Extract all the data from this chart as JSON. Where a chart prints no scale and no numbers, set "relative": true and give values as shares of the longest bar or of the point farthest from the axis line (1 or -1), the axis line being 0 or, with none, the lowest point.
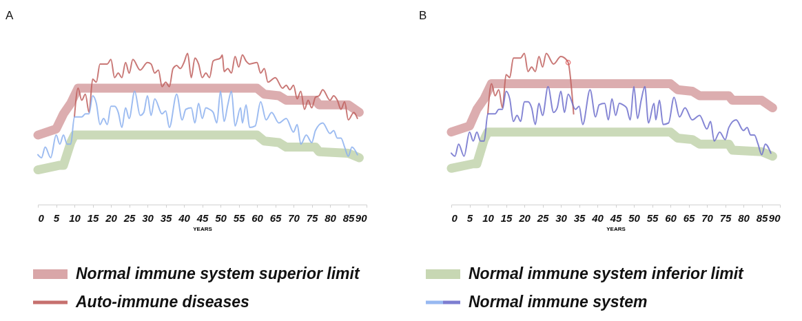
{
  "chart_data": [
    {
      "type": "line",
      "title": "A",
      "xlabel": "YEARS",
      "relative": true,
      "xlim": [
        0,
        90
      ],
      "xticks": [
        0,
        5,
        10,
        15,
        20,
        25,
        30,
        35,
        40,
        45,
        50,
        55,
        60,
        65,
        70,
        75,
        80,
        85,
        90
      ],
      "legend": "bottom",
      "series": [
        {
          "name": "Normal immune system superior limit",
          "color": "#c4777a",
          "x": [
            0,
            5,
            7,
            9,
            11,
            60,
            62,
            66,
            68,
            76,
            77,
            85,
            88
          ],
          "values": [
            0.46,
            0.5,
            0.6,
            0.67,
            0.77,
            0.77,
            0.73,
            0.72,
            0.69,
            0.69,
            0.66,
            0.66,
            0.61
          ]
        },
        {
          "name": "Normal immune system inferior limit",
          "color": "#a9c28a",
          "x": [
            0,
            6,
            7,
            9,
            10,
            60,
            62,
            66,
            68,
            76,
            77,
            85,
            88
          ],
          "values": [
            0.23,
            0.26,
            0.26,
            0.41,
            0.46,
            0.46,
            0.42,
            0.41,
            0.38,
            0.38,
            0.35,
            0.34,
            0.31
          ]
        },
        {
          "name": "Auto-immune diseases",
          "color": "#c0605e",
          "x": [
            10,
            11,
            12,
            13,
            14,
            15,
            16,
            17,
            19,
            20,
            21,
            22,
            23,
            24,
            25,
            26,
            28,
            30,
            31,
            32,
            33,
            34,
            35,
            36,
            37,
            38,
            39,
            40,
            41,
            42,
            43,
            44,
            45,
            46,
            47,
            48,
            50,
            50.5,
            51,
            52,
            53,
            54,
            55,
            56,
            57,
            58,
            60,
            61,
            62,
            63,
            65,
            67,
            68,
            69,
            70,
            71,
            72,
            73,
            74,
            75,
            76,
            77,
            78,
            80,
            81,
            82,
            83,
            84,
            85,
            86.5,
            87.5
          ],
          "values": [
            0.58,
            0.77,
            0.69,
            0.73,
            0.61,
            0.83,
            0.81,
            0.93,
            0.93,
            0.96,
            0.84,
            0.87,
            0.84,
            0.94,
            0.87,
            0.96,
            0.89,
            0.94,
            0.93,
            0.87,
            0.89,
            0.78,
            0.81,
            0.78,
            0.9,
            0.92,
            0.9,
            0.94,
            1,
            0.84,
            0.97,
            0.93,
            0.84,
            0.87,
            0.84,
            0.95,
            0.97,
            0.99,
            0.88,
            0.9,
            0.87,
            0.98,
            0.91,
            0.99,
            0.95,
            0.93,
            0.94,
            0.87,
            0.9,
            0.81,
            0.84,
            0.77,
            0.79,
            0.76,
            0.79,
            0.7,
            0.75,
            0.63,
            0.69,
            0.64,
            0.71,
            0.72,
            0.76,
            0.69,
            0.72,
            0.69,
            0.63,
            0.68,
            0.56,
            0.61,
            0.57
          ]
        },
        {
          "name": "Normal immune system",
          "color": "#8cb0ef",
          "x": [
            0,
            1,
            2,
            3.5,
            5,
            6,
            7,
            8,
            9,
            10,
            12,
            13,
            14,
            15,
            16,
            17,
            18,
            19,
            20,
            21,
            22,
            23,
            24,
            25,
            26.5,
            28,
            29,
            30,
            31,
            32,
            34,
            35,
            36,
            38,
            39.5,
            40.5,
            42,
            43,
            44,
            45,
            46,
            47,
            48,
            49,
            50,
            51,
            52,
            53,
            54,
            55.5,
            56,
            57,
            58,
            59.5,
            61,
            62.5,
            64,
            66,
            68,
            70,
            71,
            72,
            73.5,
            75,
            76,
            78,
            80,
            81,
            82,
            83,
            84,
            85,
            86,
            87.5
          ],
          "values": [
            0.33,
            0.31,
            0.38,
            0.31,
            0.46,
            0.4,
            0.46,
            0.4,
            0.4,
            0.58,
            0.58,
            0.6,
            0.6,
            0.72,
            0.67,
            0.53,
            0.57,
            0.53,
            0.65,
            0.65,
            0.61,
            0.51,
            0.64,
            0.57,
            0.75,
            0.59,
            0.61,
            0.72,
            0.59,
            0.7,
            0.6,
            0.62,
            0.51,
            0.73,
            0.56,
            0.63,
            0.64,
            0.54,
            0.67,
            0.57,
            0.64,
            0.63,
            0.61,
            0.54,
            0.75,
            0.55,
            0.66,
            0.75,
            0.52,
            0.64,
            0.54,
            0.66,
            0.51,
            0.52,
            0.68,
            0.56,
            0.61,
            0.54,
            0.57,
            0.48,
            0.53,
            0.4,
            0.46,
            0.41,
            0.49,
            0.54,
            0.47,
            0.49,
            0.44,
            0.44,
            0.38,
            0.32,
            0.38,
            0.33
          ]
        }
      ]
    },
    {
      "type": "line",
      "title": "B",
      "xlabel": "YEARS",
      "relative": true,
      "xlim": [
        0,
        90
      ],
      "xticks": [
        0,
        5,
        10,
        15,
        20,
        25,
        30,
        35,
        40,
        45,
        50,
        55,
        60,
        65,
        70,
        75,
        80,
        85,
        90
      ],
      "legend": "bottom",
      "series": [
        {
          "name": "Normal immune system superior limit",
          "color": "#c4777a",
          "x": [
            0,
            5,
            7,
            9,
            11,
            60,
            62,
            66,
            68,
            76,
            77,
            85,
            88
          ],
          "values": [
            0.48,
            0.52,
            0.63,
            0.7,
            0.8,
            0.8,
            0.76,
            0.75,
            0.72,
            0.72,
            0.69,
            0.69,
            0.64
          ]
        },
        {
          "name": "Normal immune system inferior limit",
          "color": "#a9c28a",
          "x": [
            0,
            6,
            7,
            9,
            10,
            60,
            62,
            66,
            68,
            76,
            77,
            85,
            88
          ],
          "values": [
            0.24,
            0.27,
            0.27,
            0.43,
            0.48,
            0.48,
            0.44,
            0.43,
            0.4,
            0.4,
            0.36,
            0.35,
            0.32
          ]
        },
        {
          "name": "Auto-immune diseases",
          "color": "#c0605e",
          "x": [
            10,
            11,
            12,
            13,
            14,
            15,
            16,
            17,
            19,
            20,
            21,
            22,
            23,
            24,
            25,
            26,
            28,
            30,
            31,
            32,
            33.5
          ],
          "values": [
            0.6,
            0.8,
            0.72,
            0.76,
            0.64,
            0.86,
            0.84,
            0.97,
            0.97,
            1,
            0.88,
            0.91,
            0.88,
            0.98,
            0.91,
            1,
            0.93,
            0.98,
            0.97,
            0.94,
            0.6
          ]
        },
        {
          "name": "Normal immune system",
          "color": "#6f70cc",
          "x": [
            0,
            1,
            2,
            3.5,
            5,
            6,
            7,
            8,
            9,
            10,
            12,
            13,
            14,
            15,
            16,
            17,
            18,
            19,
            20,
            21,
            22,
            23,
            24,
            25,
            26.5,
            28,
            29,
            30,
            31,
            32,
            34,
            35,
            36,
            38,
            39.5,
            40.5,
            42,
            43,
            44,
            45,
            46,
            47,
            48,
            49,
            50,
            51,
            52,
            53,
            54,
            55.5,
            56,
            57,
            58,
            59.5,
            61,
            62.5,
            64,
            66,
            68,
            70,
            71,
            72,
            73.5,
            75,
            76,
            78,
            80,
            81,
            82,
            83,
            84,
            85,
            86,
            87.5
          ],
          "values": [
            0.34,
            0.32,
            0.4,
            0.32,
            0.48,
            0.42,
            0.48,
            0.42,
            0.42,
            0.6,
            0.6,
            0.63,
            0.63,
            0.75,
            0.7,
            0.55,
            0.59,
            0.55,
            0.68,
            0.68,
            0.64,
            0.53,
            0.67,
            0.59,
            0.78,
            0.61,
            0.64,
            0.75,
            0.61,
            0.73,
            0.63,
            0.65,
            0.53,
            0.76,
            0.58,
            0.66,
            0.67,
            0.56,
            0.7,
            0.59,
            0.67,
            0.66,
            0.64,
            0.56,
            0.78,
            0.57,
            0.69,
            0.78,
            0.54,
            0.67,
            0.56,
            0.69,
            0.53,
            0.54,
            0.71,
            0.58,
            0.64,
            0.56,
            0.59,
            0.5,
            0.55,
            0.42,
            0.48,
            0.43,
            0.51,
            0.56,
            0.49,
            0.51,
            0.46,
            0.46,
            0.4,
            0.33,
            0.4,
            0.34
          ]
        },
        {
          "type": "scatter",
          "marker": "circle",
          "color": "#e05050",
          "x": [
            32
          ],
          "values": [
            0.94
          ]
        }
      ]
    }
  ]
}
